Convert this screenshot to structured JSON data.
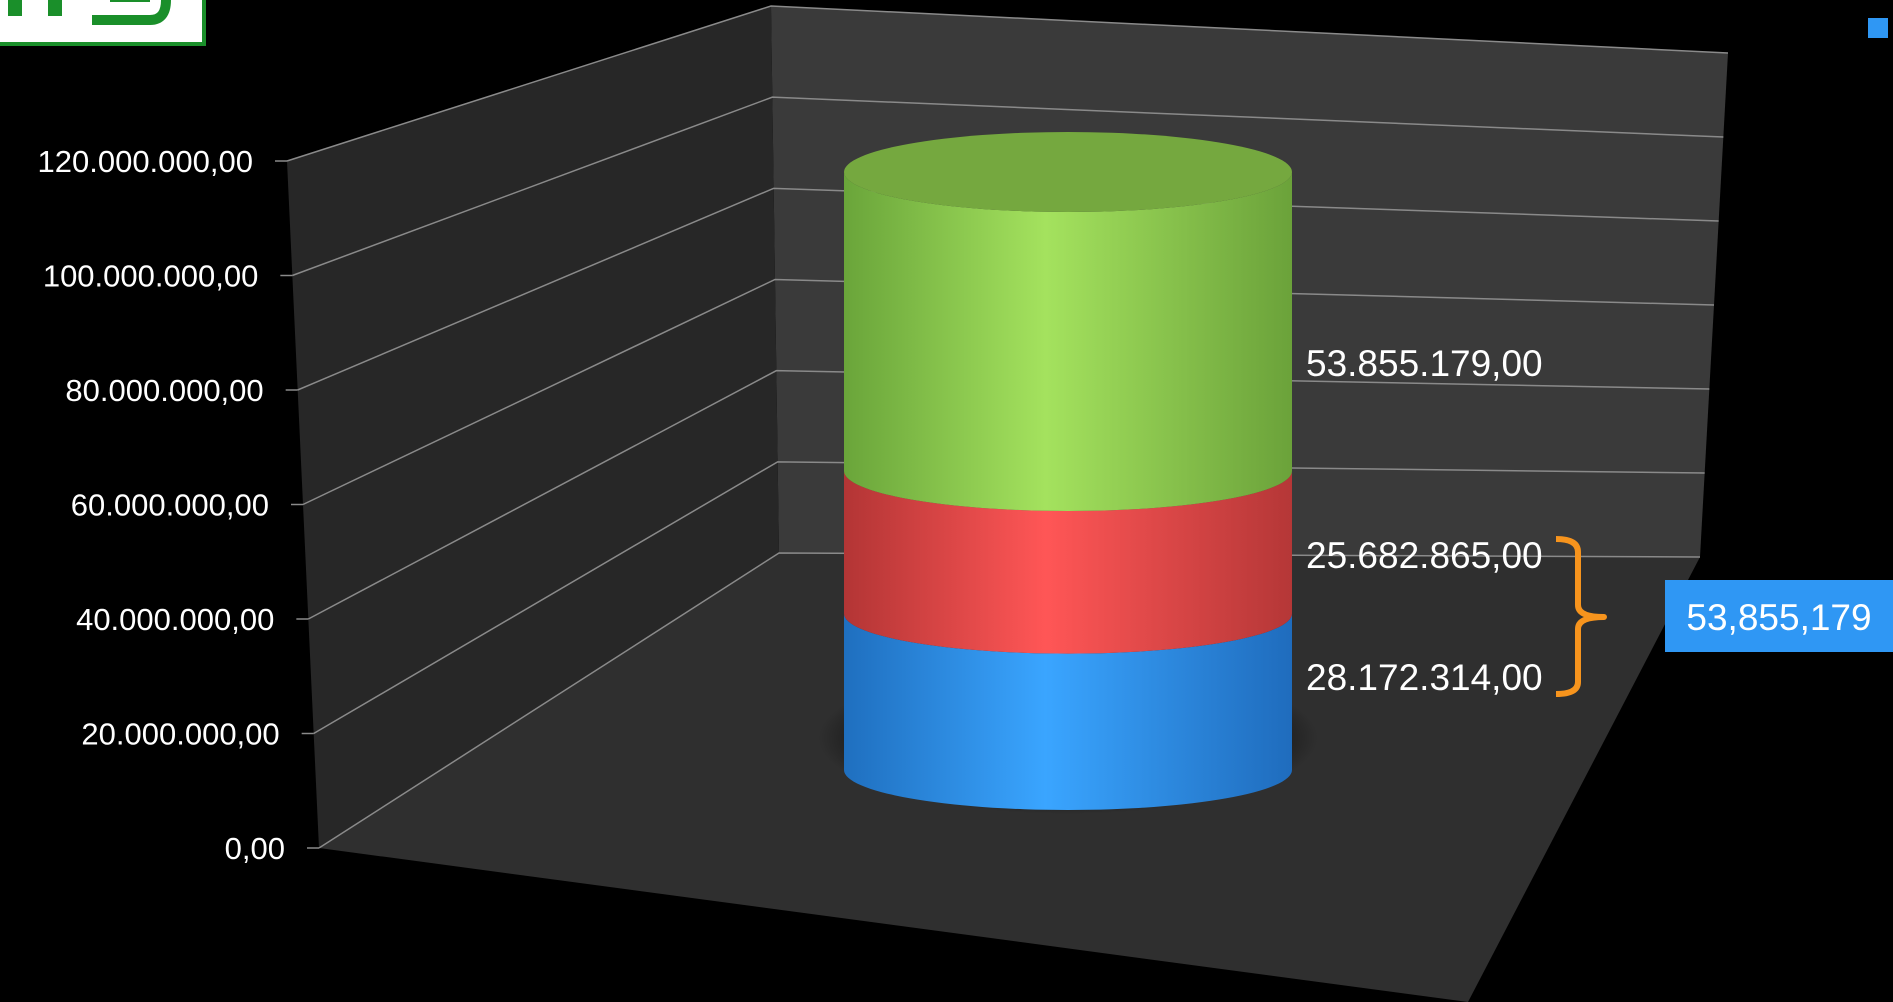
{
  "chart_data": {
    "type": "bar",
    "variant": "3d-cylinder-stacked",
    "title": "",
    "xlabel": "",
    "ylabel": "",
    "categories": [
      ""
    ],
    "ylim": [
      0,
      120000000
    ],
    "yticks": [
      "0,00",
      "20.000.000,00",
      "40.000.000,00",
      "60.000.000,00",
      "80.000.000,00",
      "100.000.000,00",
      "120.000.000,00"
    ],
    "grid": true,
    "series": [
      {
        "values": [
          28172314
        ],
        "color": "#2f97f4",
        "label": "28.172.314,00"
      },
      {
        "values": [
          25682865
        ],
        "color": "#f44b4b",
        "label": "25.682.865,00"
      },
      {
        "values": [
          53855179
        ],
        "color": "#8fd44c",
        "label": "53.855.179,00"
      }
    ],
    "annotations": [
      {
        "text": "53,855,179",
        "brace_over_series": [
          0,
          1
        ],
        "box_color": "#2f97f4",
        "brace_color": "#f7941d"
      }
    ],
    "legend_placement": "top-right",
    "legend_marker_color": "#2f97f4"
  },
  "colors": {
    "background": "#000000",
    "back_wall": "#3a3a3a",
    "side_wall": "#272727",
    "floor": "#2f2f2f",
    "gridline": "#8a8a8a",
    "logo_green": "#1a8f2a"
  },
  "logo": {
    "icon": "company-logo-icon"
  }
}
